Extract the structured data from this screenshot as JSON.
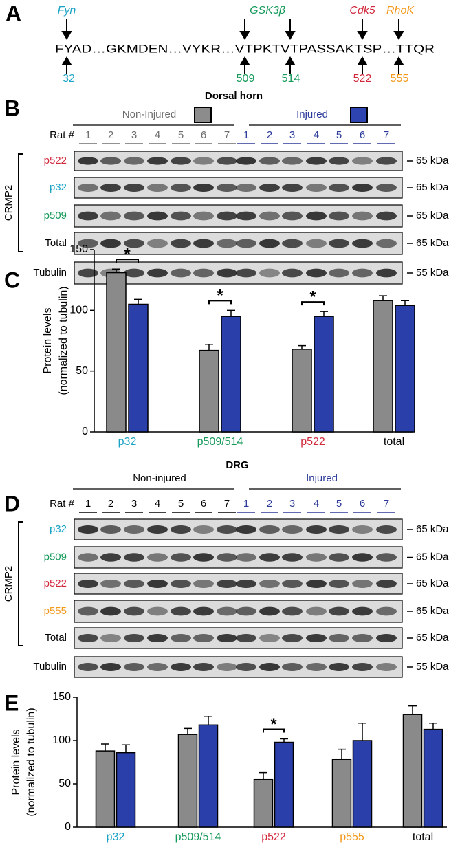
{
  "panel_labels": [
    "A",
    "B",
    "C",
    "D",
    "E"
  ],
  "sequence": {
    "text": "FYAD…GKMDEN…VYKR…VTPKTVTPASSAKTSP…TTQR",
    "kinases": [
      {
        "name": "Fyn",
        "color": "#1ba3c6"
      },
      {
        "name": "GSK3β",
        "color": "#159a5a"
      },
      {
        "name": "Cdk5",
        "color": "#d1283c"
      },
      {
        "name": "RhoK",
        "color": "#f39a1e"
      }
    ],
    "sites": [
      {
        "position": 32,
        "color": "#1ba3c6"
      },
      {
        "position": 509,
        "color": "#159a5a"
      },
      {
        "position": 514,
        "color": "#159a5a"
      },
      {
        "position": 522,
        "color": "#d1283c"
      },
      {
        "position": 555,
        "color": "#f39a1e"
      }
    ]
  },
  "dorsal_horn_blot": {
    "title": "Dorsal horn",
    "lane_heading": "Rat #",
    "group_heading": "CRMP2",
    "groups": [
      {
        "name": "Non-Injured",
        "color": "#6e6e6e",
        "box": "#8c8c8c",
        "lanes": [
          1,
          2,
          3,
          4,
          5,
          6,
          7
        ]
      },
      {
        "name": "Injured",
        "color": "#2b3a9a",
        "box": "#2e44b0",
        "lanes": [
          1,
          2,
          3,
          4,
          5,
          6,
          7
        ]
      }
    ],
    "rows": [
      {
        "name": "p522",
        "color": "#d1283c",
        "marker": "65 kDa"
      },
      {
        "name": "p32",
        "color": "#1ba3c6",
        "marker": "65 kDa"
      },
      {
        "name": "p509",
        "color": "#159a5a",
        "marker": "65 kDa"
      },
      {
        "name": "Total",
        "color": "#000000",
        "marker": "65 kDa"
      },
      {
        "name": "Tubulin",
        "color": "#000000",
        "marker": "55 kDa"
      }
    ]
  },
  "drg_blot": {
    "title": "DRG",
    "lane_heading": "Rat #",
    "group_heading": "CRMP2",
    "groups": [
      {
        "name": "Non-injured",
        "color": "#000000",
        "lanes": [
          1,
          2,
          3,
          4,
          5,
          6,
          7
        ]
      },
      {
        "name": "Injured",
        "color": "#2b3a9a",
        "lanes": [
          1,
          2,
          3,
          4,
          5,
          6,
          7
        ]
      }
    ],
    "rows": [
      {
        "name": "p32",
        "color": "#1ba3c6",
        "marker": "65 kDa"
      },
      {
        "name": "p509",
        "color": "#159a5a",
        "marker": "65 kDa"
      },
      {
        "name": "p522",
        "color": "#d1283c",
        "marker": "65 kDa"
      },
      {
        "name": "p555",
        "color": "#f39a1e",
        "marker": "65 kDa"
      },
      {
        "name": "Total",
        "color": "#000000",
        "marker": "65 kDa"
      },
      {
        "name": "Tubulin",
        "color": "#000000",
        "marker": "55 kDa"
      }
    ]
  },
  "chart_data": [
    {
      "type": "bar",
      "ylabel": [
        "Protein levels",
        "(normalized to tubulin)"
      ],
      "categories": [
        "p32",
        "p509/514",
        "p522",
        "total"
      ],
      "category_colors": [
        "#1ba3c6",
        "#159a5a",
        "#d1283c",
        "#000000"
      ],
      "series": [
        {
          "color": "#8a8a8a",
          "values": [
            131,
            67,
            68,
            108
          ],
          "errors": [
            3,
            5,
            3,
            4
          ]
        },
        {
          "color": "#2b3faa",
          "values": [
            105,
            95,
            95,
            104
          ],
          "errors": [
            4,
            5,
            4,
            4
          ]
        }
      ],
      "significance": [
        "*",
        "*",
        "*",
        null
      ],
      "ylim": [
        0,
        150
      ],
      "yticks": [
        0,
        50,
        100,
        150
      ]
    },
    {
      "type": "bar",
      "ylabel": [
        "Protein levels",
        "(normalized to tubulin)"
      ],
      "categories": [
        "p32",
        "p509/514",
        "p522",
        "p555",
        "total"
      ],
      "category_colors": [
        "#1ba3c6",
        "#159a5a",
        "#d1283c",
        "#f39a1e",
        "#000000"
      ],
      "series": [
        {
          "color": "#8a8a8a",
          "values": [
            88,
            107,
            55,
            78,
            130
          ],
          "errors": [
            8,
            7,
            8,
            12,
            10
          ]
        },
        {
          "color": "#2b3faa",
          "values": [
            86,
            118,
            98,
            100,
            113
          ],
          "errors": [
            9,
            10,
            4,
            20,
            7
          ]
        }
      ],
      "significance": [
        null,
        null,
        "*",
        null,
        null
      ],
      "ylim": [
        0,
        150
      ],
      "yticks": [
        0,
        50,
        100,
        150
      ]
    }
  ]
}
